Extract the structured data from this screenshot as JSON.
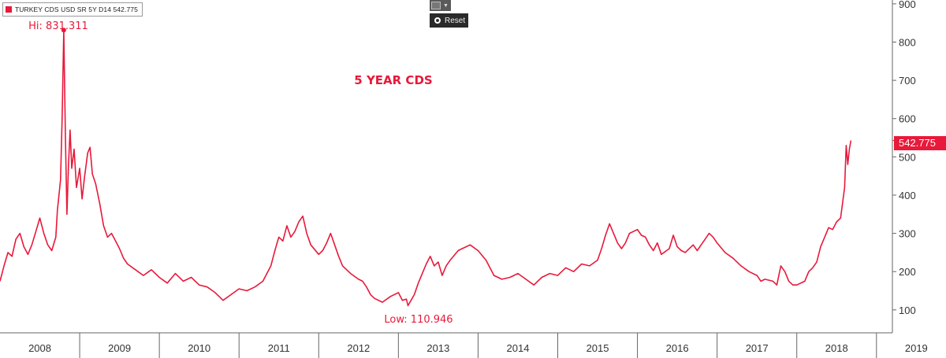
{
  "legend": {
    "text": "TURKEY CDS USD SR 5Y D14 542.775",
    "swatch_color": "#e8193a"
  },
  "toolbar": {
    "chart_icon": "line-chart-icon",
    "reset_label": "Reset"
  },
  "colors": {
    "series": "#e8193a",
    "axis": "#666666",
    "label": "#e8193a",
    "background": "#ffffff"
  },
  "chart_data": {
    "type": "line",
    "title": "5 YEAR CDS",
    "xlabel": "",
    "ylabel": "",
    "x_tick_labels": [
      "2008",
      "2009",
      "2010",
      "2011",
      "2012",
      "2013",
      "2014",
      "2015",
      "2016",
      "2017",
      "2018",
      "2019"
    ],
    "xlim": [
      2008.0,
      2019.2
    ],
    "ylim": [
      40,
      910
    ],
    "y_ticks": [
      100,
      200,
      300,
      400,
      500,
      600,
      700,
      800,
      900
    ],
    "y_axis_side": "right",
    "grid": false,
    "annotations": {
      "high": "Hi: 831.311",
      "low": "Low: 110.946",
      "last": "542.775"
    },
    "series": [
      {
        "name": "TURKEY CDS USD SR 5Y D14",
        "points": [
          [
            2008.0,
            175
          ],
          [
            2008.05,
            215
          ],
          [
            2008.1,
            250
          ],
          [
            2008.15,
            240
          ],
          [
            2008.2,
            285
          ],
          [
            2008.25,
            300
          ],
          [
            2008.3,
            265
          ],
          [
            2008.35,
            245
          ],
          [
            2008.4,
            270
          ],
          [
            2008.45,
            305
          ],
          [
            2008.5,
            340
          ],
          [
            2008.55,
            300
          ],
          [
            2008.6,
            270
          ],
          [
            2008.65,
            255
          ],
          [
            2008.7,
            290
          ],
          [
            2008.72,
            360
          ],
          [
            2008.76,
            440
          ],
          [
            2008.78,
            600
          ],
          [
            2008.8,
            831.311
          ],
          [
            2008.82,
            560
          ],
          [
            2008.84,
            350
          ],
          [
            2008.86,
            480
          ],
          [
            2008.88,
            570
          ],
          [
            2008.9,
            470
          ],
          [
            2008.93,
            520
          ],
          [
            2008.96,
            420
          ],
          [
            2009.0,
            470
          ],
          [
            2009.03,
            390
          ],
          [
            2009.06,
            445
          ],
          [
            2009.1,
            510
          ],
          [
            2009.13,
            525
          ],
          [
            2009.16,
            455
          ],
          [
            2009.2,
            430
          ],
          [
            2009.25,
            380
          ],
          [
            2009.3,
            320
          ],
          [
            2009.35,
            290
          ],
          [
            2009.4,
            300
          ],
          [
            2009.45,
            280
          ],
          [
            2009.5,
            260
          ],
          [
            2009.55,
            235
          ],
          [
            2009.6,
            220
          ],
          [
            2009.7,
            205
          ],
          [
            2009.8,
            190
          ],
          [
            2009.9,
            205
          ],
          [
            2010.0,
            185
          ],
          [
            2010.1,
            170
          ],
          [
            2010.2,
            195
          ],
          [
            2010.3,
            175
          ],
          [
            2010.4,
            185
          ],
          [
            2010.5,
            165
          ],
          [
            2010.6,
            160
          ],
          [
            2010.7,
            145
          ],
          [
            2010.8,
            125
          ],
          [
            2010.9,
            140
          ],
          [
            2011.0,
            155
          ],
          [
            2011.1,
            150
          ],
          [
            2011.2,
            160
          ],
          [
            2011.3,
            175
          ],
          [
            2011.4,
            215
          ],
          [
            2011.45,
            255
          ],
          [
            2011.5,
            290
          ],
          [
            2011.55,
            280
          ],
          [
            2011.6,
            320
          ],
          [
            2011.65,
            290
          ],
          [
            2011.7,
            305
          ],
          [
            2011.75,
            330
          ],
          [
            2011.8,
            345
          ],
          [
            2011.85,
            300
          ],
          [
            2011.9,
            270
          ],
          [
            2012.0,
            245
          ],
          [
            2012.05,
            255
          ],
          [
            2012.1,
            275
          ],
          [
            2012.15,
            300
          ],
          [
            2012.2,
            270
          ],
          [
            2012.25,
            240
          ],
          [
            2012.3,
            215
          ],
          [
            2012.4,
            195
          ],
          [
            2012.5,
            180
          ],
          [
            2012.55,
            175
          ],
          [
            2012.6,
            160
          ],
          [
            2012.65,
            140
          ],
          [
            2012.7,
            130
          ],
          [
            2012.8,
            120
          ],
          [
            2012.9,
            135
          ],
          [
            2013.0,
            145
          ],
          [
            2013.05,
            125
          ],
          [
            2013.1,
            128
          ],
          [
            2013.12,
            110.946
          ],
          [
            2013.2,
            140
          ],
          [
            2013.25,
            170
          ],
          [
            2013.3,
            195
          ],
          [
            2013.35,
            220
          ],
          [
            2013.4,
            240
          ],
          [
            2013.45,
            215
          ],
          [
            2013.5,
            225
          ],
          [
            2013.55,
            190
          ],
          [
            2013.6,
            215
          ],
          [
            2013.65,
            230
          ],
          [
            2013.75,
            255
          ],
          [
            2013.8,
            260
          ],
          [
            2013.85,
            265
          ],
          [
            2013.9,
            270
          ],
          [
            2014.0,
            255
          ],
          [
            2014.1,
            230
          ],
          [
            2014.2,
            190
          ],
          [
            2014.3,
            180
          ],
          [
            2014.4,
            185
          ],
          [
            2014.5,
            195
          ],
          [
            2014.6,
            180
          ],
          [
            2014.7,
            165
          ],
          [
            2014.8,
            185
          ],
          [
            2014.9,
            195
          ],
          [
            2015.0,
            190
          ],
          [
            2015.1,
            210
          ],
          [
            2015.2,
            200
          ],
          [
            2015.3,
            220
          ],
          [
            2015.4,
            215
          ],
          [
            2015.5,
            230
          ],
          [
            2015.55,
            260
          ],
          [
            2015.6,
            295
          ],
          [
            2015.65,
            325
          ],
          [
            2015.7,
            300
          ],
          [
            2015.75,
            275
          ],
          [
            2015.8,
            260
          ],
          [
            2015.85,
            275
          ],
          [
            2015.9,
            300
          ],
          [
            2016.0,
            310
          ],
          [
            2016.05,
            295
          ],
          [
            2016.1,
            290
          ],
          [
            2016.15,
            270
          ],
          [
            2016.2,
            255
          ],
          [
            2016.25,
            275
          ],
          [
            2016.3,
            245
          ],
          [
            2016.4,
            260
          ],
          [
            2016.45,
            295
          ],
          [
            2016.5,
            265
          ],
          [
            2016.55,
            255
          ],
          [
            2016.6,
            250
          ],
          [
            2016.7,
            270
          ],
          [
            2016.75,
            255
          ],
          [
            2016.8,
            270
          ],
          [
            2016.85,
            285
          ],
          [
            2016.9,
            300
          ],
          [
            2016.95,
            290
          ],
          [
            2017.0,
            275
          ],
          [
            2017.1,
            250
          ],
          [
            2017.2,
            235
          ],
          [
            2017.3,
            215
          ],
          [
            2017.4,
            200
          ],
          [
            2017.5,
            190
          ],
          [
            2017.55,
            175
          ],
          [
            2017.6,
            180
          ],
          [
            2017.7,
            175
          ],
          [
            2017.75,
            165
          ],
          [
            2017.8,
            215
          ],
          [
            2017.85,
            200
          ],
          [
            2017.9,
            175
          ],
          [
            2017.95,
            165
          ],
          [
            2018.0,
            165
          ],
          [
            2018.1,
            175
          ],
          [
            2018.15,
            200
          ],
          [
            2018.2,
            210
          ],
          [
            2018.25,
            225
          ],
          [
            2018.3,
            265
          ],
          [
            2018.35,
            290
          ],
          [
            2018.4,
            315
          ],
          [
            2018.45,
            310
          ],
          [
            2018.5,
            330
          ],
          [
            2018.55,
            340
          ],
          [
            2018.6,
            420
          ],
          [
            2018.62,
            530
          ],
          [
            2018.64,
            480
          ],
          [
            2018.66,
            520
          ],
          [
            2018.68,
            542.775
          ]
        ]
      }
    ]
  }
}
